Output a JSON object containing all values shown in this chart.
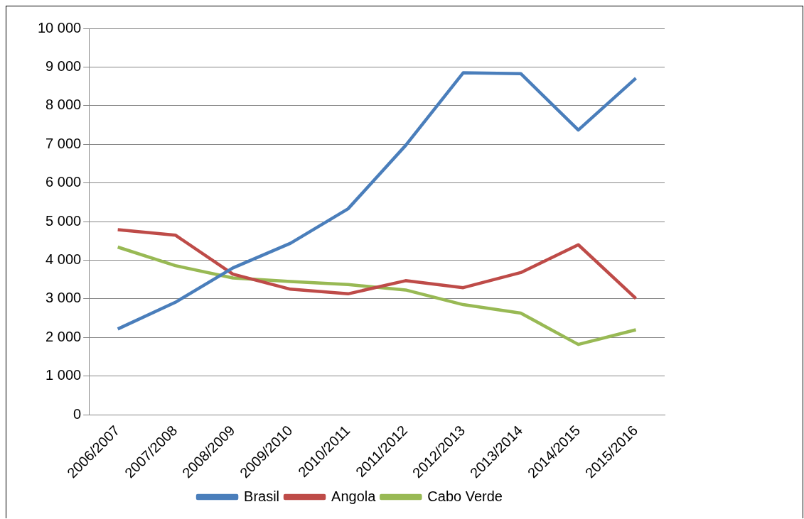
{
  "chart_data": {
    "type": "line",
    "categories": [
      "2006/2007",
      "2007/2008",
      "2008/2009",
      "2009/2010",
      "2010/2011",
      "2011/2012",
      "2012/2013",
      "2013/2014",
      "2014/2015",
      "2015/2016"
    ],
    "series": [
      {
        "name": "Brasil",
        "color": "#4a7ebb",
        "values": [
          2220,
          2910,
          3800,
          4440,
          5330,
          6970,
          8850,
          8830,
          7370,
          8710
        ]
      },
      {
        "name": "Angola",
        "color": "#be4b48",
        "values": [
          4790,
          4650,
          3640,
          3250,
          3130,
          3470,
          3290,
          3680,
          4400,
          3010
        ]
      },
      {
        "name": "Cabo Verde",
        "color": "#98b954",
        "values": [
          4340,
          3860,
          3540,
          3450,
          3370,
          3230,
          2850,
          2630,
          1820,
          2200
        ]
      }
    ],
    "ylim": [
      0,
      10000
    ],
    "yticks": [
      0,
      {
        "value": 1000,
        "label": "1 000"
      },
      {
        "value": 2000,
        "label": "2 000"
      },
      {
        "value": 3000,
        "label": "3 000"
      },
      {
        "value": 4000,
        "label": "4 000"
      },
      {
        "value": 5000,
        "label": "5 000"
      },
      {
        "value": 6000,
        "label": "6 000"
      },
      {
        "value": 7000,
        "label": "7 000"
      },
      {
        "value": 8000,
        "label": "8 000"
      },
      {
        "value": 9000,
        "label": "9 000"
      },
      {
        "value": 10000,
        "label": "10 000"
      }
    ],
    "grid": "y",
    "legend": "bottom",
    "marker": "none",
    "line_style": "solid"
  }
}
